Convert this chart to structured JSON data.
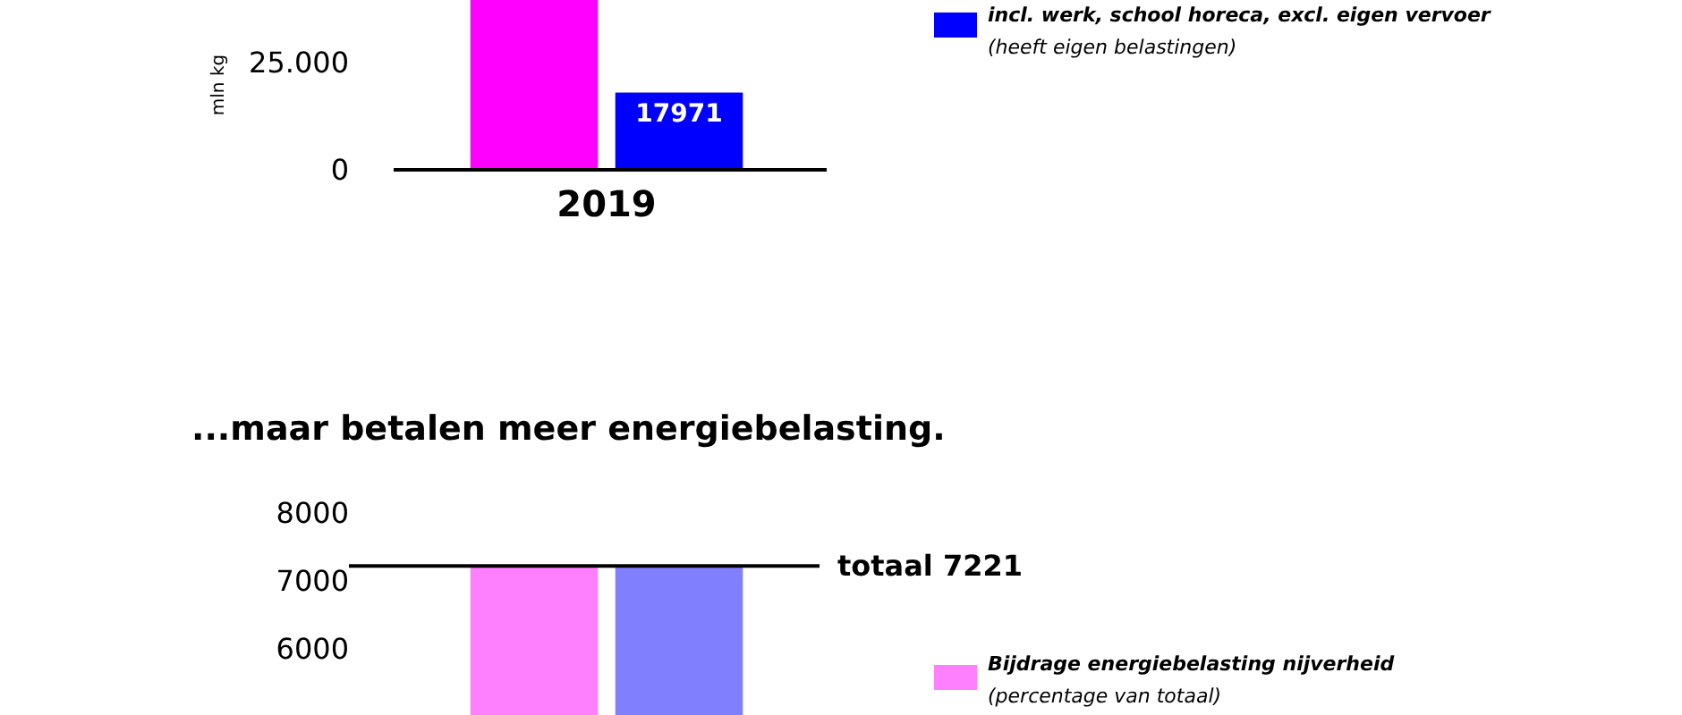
{
  "chart_data": [
    {
      "type": "bar",
      "categories": [
        "2019"
      ],
      "ylabel": "mln kg",
      "ylim": [
        0,
        39500
      ],
      "yticks": [
        0,
        {
          "value": 25000,
          "label": "25.000"
        }
      ],
      "legend": "right",
      "series": [
        {
          "color": "#ff00ff",
          "values": [
            39500
          ]
        },
        {
          "name": "incl. werk, school horeca, excl. eigen vervoer (heeft eigen belastingen)",
          "color": "#0000ff",
          "values": [
            17971
          ],
          "value_labels": [
            "17971"
          ]
        }
      ]
    },
    {
      "type": "bar",
      "title": "...maar betalen meer energiebelasting.",
      "categories": [
        null
      ],
      "ylim": [
        5030,
        8000
      ],
      "yticks": [
        6000,
        7000,
        8000
      ],
      "legend": "right",
      "ref_lines": [
        {
          "axis": "y",
          "value": 7221,
          "label": "totaal 7221"
        }
      ],
      "series": [
        {
          "name": "Bijdrage energiebelasting nijverheid (percentage van totaal)",
          "color": "#ff80ff",
          "values": [
            7221
          ]
        },
        {
          "color": "#8080ff",
          "values": [
            7221
          ]
        }
      ]
    }
  ]
}
